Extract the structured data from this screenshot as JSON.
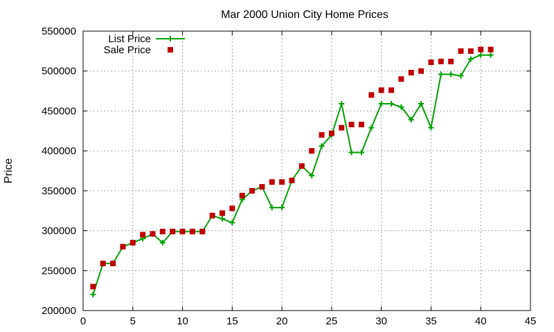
{
  "chart_data": {
    "type": "line",
    "title": "Mar 2000 Union City Home Prices",
    "xlabel": "",
    "ylabel": "Price",
    "xlim": [
      0,
      45
    ],
    "ylim": [
      200000,
      550000
    ],
    "xticks": [
      0,
      5,
      10,
      15,
      20,
      25,
      30,
      35,
      40,
      45
    ],
    "yticks": [
      200000,
      250000,
      300000,
      350000,
      400000,
      450000,
      500000,
      550000
    ],
    "grid": true,
    "legend_position": "top-left",
    "series": [
      {
        "name": "List Price",
        "style": "line-with-plus-markers",
        "color": "#00a000",
        "x": [
          1,
          2,
          3,
          4,
          5,
          6,
          7,
          8,
          9,
          10,
          11,
          12,
          13,
          14,
          15,
          16,
          17,
          18,
          19,
          20,
          21,
          22,
          23,
          24,
          25,
          26,
          27,
          28,
          29,
          30,
          31,
          32,
          33,
          34,
          35,
          36,
          37,
          38,
          39,
          40,
          41
        ],
        "y": [
          220000,
          259000,
          259000,
          280000,
          285000,
          290000,
          296000,
          285000,
          299000,
          299000,
          299000,
          299000,
          319000,
          315000,
          310000,
          339000,
          350000,
          355000,
          329000,
          329000,
          363000,
          381000,
          369000,
          406000,
          420000,
          459000,
          398000,
          398000,
          429000,
          459000,
          459000,
          455000,
          439000,
          459000,
          429000,
          496000,
          496000,
          494000,
          515000,
          520000,
          520000
        ]
      },
      {
        "name": "Sale Price",
        "style": "square-markers",
        "color": "#c00000",
        "x": [
          1,
          2,
          3,
          4,
          5,
          6,
          7,
          8,
          9,
          10,
          11,
          12,
          13,
          14,
          15,
          16,
          17,
          18,
          19,
          20,
          21,
          22,
          23,
          24,
          25,
          26,
          27,
          28,
          29,
          30,
          31,
          32,
          33,
          34,
          35,
          36,
          37,
          38,
          39,
          40,
          41
        ],
        "y": [
          230000,
          259000,
          259000,
          280000,
          285000,
          295000,
          296000,
          299000,
          299000,
          299000,
          299000,
          299000,
          319000,
          322000,
          328000,
          344000,
          350000,
          355000,
          361000,
          361000,
          363000,
          381000,
          400000,
          420000,
          422000,
          429000,
          433000,
          433000,
          470000,
          476000,
          476000,
          490000,
          498000,
          500000,
          511000,
          512000,
          512000,
          525000,
          525000,
          527000,
          527000
        ]
      }
    ]
  }
}
